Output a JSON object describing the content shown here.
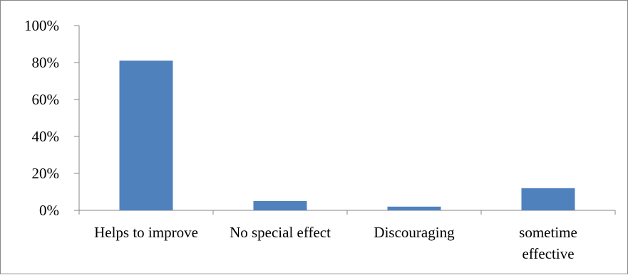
{
  "chart_data": {
    "type": "bar",
    "categories": [
      [
        "Helps to improve"
      ],
      [
        "No special effect"
      ],
      [
        "Discouraging"
      ],
      [
        "sometime",
        "effective"
      ]
    ],
    "values": [
      0.81,
      0.05,
      0.02,
      0.12
    ],
    "yticks": [
      "0%",
      "20%",
      "40%",
      "60%",
      "80%",
      "100%"
    ],
    "ylim": [
      0,
      1
    ],
    "grid": false,
    "legend": "none",
    "bar_color": "#4F81BD",
    "axis_color": "#868686"
  }
}
